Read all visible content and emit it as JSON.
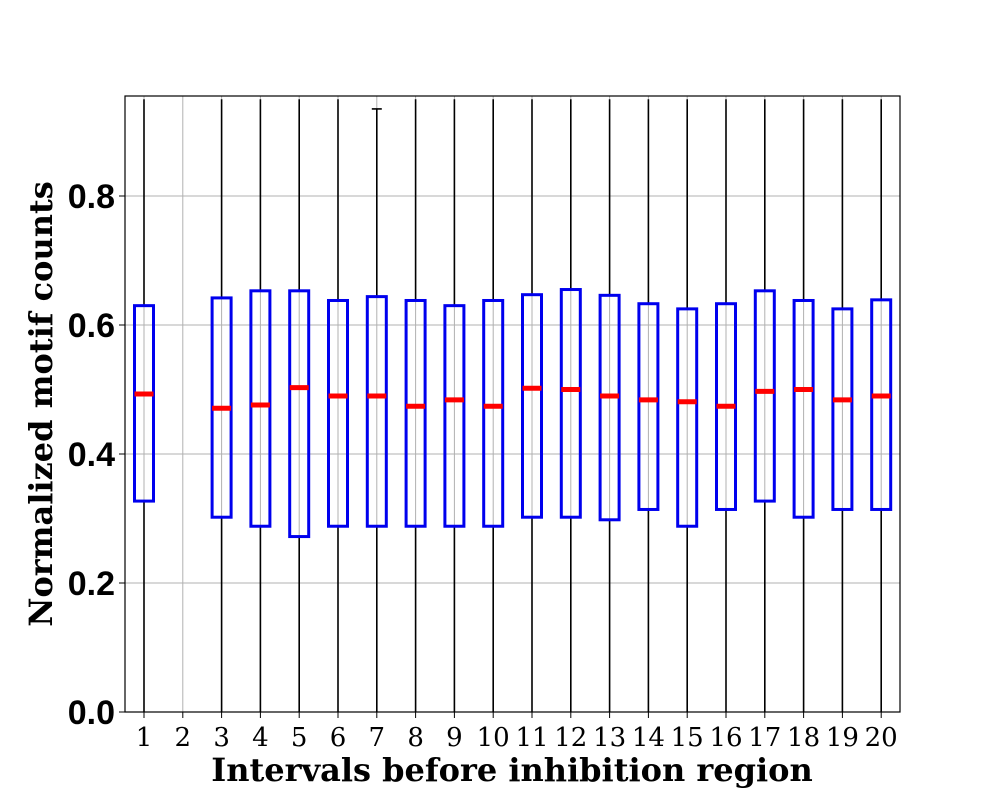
{
  "chart_data": {
    "type": "box",
    "xlabel": "Intervals before inhibition region",
    "ylabel": "Normalized motif counts",
    "ylim": [
      0,
      0.95
    ],
    "yticks": [
      "0.0",
      "0.2",
      "0.4",
      "0.6",
      "0.8"
    ],
    "ytick_values": [
      0.0,
      0.2,
      0.4,
      0.6,
      0.8
    ],
    "categories": [
      "1",
      "2",
      "3",
      "4",
      "5",
      "6",
      "7",
      "8",
      "9",
      "10",
      "11",
      "12",
      "13",
      "14",
      "15",
      "16",
      "17",
      "18",
      "19",
      "20"
    ],
    "grid": true,
    "colors": {
      "box": "#0000ee",
      "median": "#ff0000",
      "whisker": "#000000",
      "grid": "#b0b0b0"
    },
    "boxes": [
      {
        "label": "1",
        "q1": 0.327,
        "median": 0.493,
        "q3": 0.63,
        "whisker_low": 0.0,
        "whisker_high": 0.95
      },
      {
        "label": "2",
        "q1": null,
        "median": null,
        "q3": null,
        "whisker_low": null,
        "whisker_high": null
      },
      {
        "label": "3",
        "q1": 0.302,
        "median": 0.471,
        "q3": 0.642,
        "whisker_low": 0.0,
        "whisker_high": 0.95
      },
      {
        "label": "4",
        "q1": 0.288,
        "median": 0.476,
        "q3": 0.653,
        "whisker_low": 0.0,
        "whisker_high": 0.95
      },
      {
        "label": "5",
        "q1": 0.272,
        "median": 0.503,
        "q3": 0.653,
        "whisker_low": 0.0,
        "whisker_high": 0.95
      },
      {
        "label": "6",
        "q1": 0.288,
        "median": 0.49,
        "q3": 0.638,
        "whisker_low": 0.0,
        "whisker_high": 0.95
      },
      {
        "label": "7",
        "q1": 0.288,
        "median": 0.49,
        "q3": 0.644,
        "whisker_low": 0.0,
        "whisker_high": 0.935
      },
      {
        "label": "8",
        "q1": 0.288,
        "median": 0.474,
        "q3": 0.638,
        "whisker_low": 0.0,
        "whisker_high": 0.95
      },
      {
        "label": "9",
        "q1": 0.288,
        "median": 0.484,
        "q3": 0.63,
        "whisker_low": 0.0,
        "whisker_high": 0.95
      },
      {
        "label": "10",
        "q1": 0.288,
        "median": 0.474,
        "q3": 0.638,
        "whisker_low": 0.0,
        "whisker_high": 0.95
      },
      {
        "label": "11",
        "q1": 0.302,
        "median": 0.502,
        "q3": 0.647,
        "whisker_low": 0.0,
        "whisker_high": 0.95
      },
      {
        "label": "12",
        "q1": 0.302,
        "median": 0.5,
        "q3": 0.655,
        "whisker_low": 0.0,
        "whisker_high": 0.95
      },
      {
        "label": "13",
        "q1": 0.298,
        "median": 0.49,
        "q3": 0.646,
        "whisker_low": 0.0,
        "whisker_high": 0.95
      },
      {
        "label": "14",
        "q1": 0.314,
        "median": 0.484,
        "q3": 0.633,
        "whisker_low": 0.0,
        "whisker_high": 0.95
      },
      {
        "label": "15",
        "q1": 0.288,
        "median": 0.481,
        "q3": 0.625,
        "whisker_low": 0.0,
        "whisker_high": 0.95
      },
      {
        "label": "16",
        "q1": 0.314,
        "median": 0.474,
        "q3": 0.633,
        "whisker_low": 0.0,
        "whisker_high": 0.95
      },
      {
        "label": "17",
        "q1": 0.327,
        "median": 0.497,
        "q3": 0.653,
        "whisker_low": 0.0,
        "whisker_high": 0.95
      },
      {
        "label": "18",
        "q1": 0.302,
        "median": 0.5,
        "q3": 0.638,
        "whisker_low": 0.0,
        "whisker_high": 0.95
      },
      {
        "label": "19",
        "q1": 0.314,
        "median": 0.484,
        "q3": 0.625,
        "whisker_low": 0.0,
        "whisker_high": 0.95
      },
      {
        "label": "20",
        "q1": 0.314,
        "median": 0.49,
        "q3": 0.639,
        "whisker_low": 0.0,
        "whisker_high": 0.95
      }
    ]
  }
}
